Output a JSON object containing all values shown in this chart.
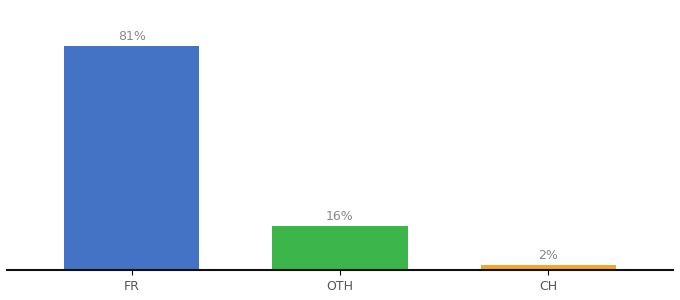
{
  "categories": [
    "FR",
    "OTH",
    "CH"
  ],
  "values": [
    81,
    16,
    2
  ],
  "bar_colors": [
    "#4472C4",
    "#3CB54A",
    "#F5A623"
  ],
  "labels": [
    "81%",
    "16%",
    "2%"
  ],
  "ylim": [
    0,
    95
  ],
  "background_color": "#ffffff",
  "label_fontsize": 9,
  "tick_fontsize": 9,
  "bar_width": 0.65
}
